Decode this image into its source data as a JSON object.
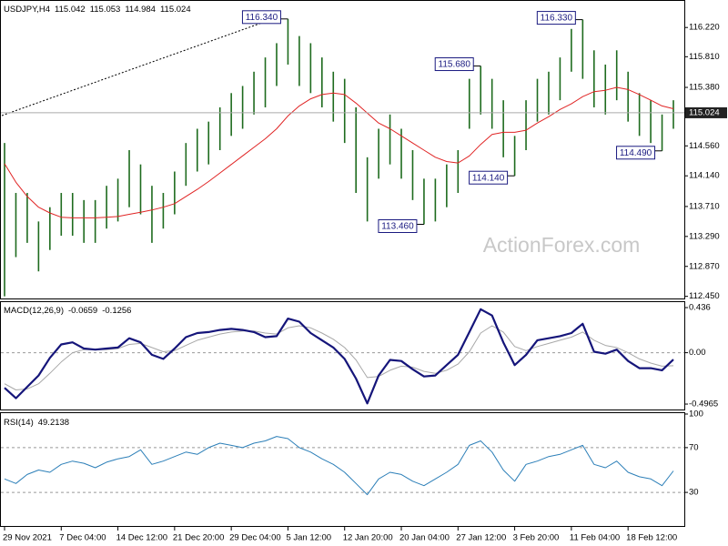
{
  "chart_data": [
    {
      "type": "range",
      "symbol": "USDJPY,H4",
      "ohlc": [
        115.042,
        115.053,
        114.984,
        115.024
      ],
      "watermark": "ActionForex.com",
      "categories": [
        "29 Nov 2021",
        null,
        null,
        null,
        null,
        "7 Dec 04:00",
        null,
        null,
        null,
        null,
        "14 Dec 12:00",
        null,
        null,
        null,
        null,
        "21 Dec 20:00",
        null,
        null,
        null,
        null,
        "29 Dec 04:00",
        null,
        null,
        null,
        null,
        "5 Jan 12:00",
        null,
        null,
        null,
        null,
        "12 Jan 20:00",
        null,
        null,
        null,
        null,
        "20 Jan 04:00",
        null,
        null,
        null,
        null,
        "27 Jan 12:00",
        null,
        null,
        null,
        null,
        "3 Feb 20:00",
        null,
        null,
        null,
        null,
        "11 Feb 04:00",
        null,
        null,
        null,
        null,
        "18 Feb 12:00",
        null,
        null,
        null,
        null
      ],
      "high": [
        114.6,
        113.9,
        113.9,
        113.5,
        113.7,
        113.9,
        113.9,
        113.8,
        113.8,
        114.0,
        114.1,
        114.5,
        114.3,
        114.0,
        113.9,
        114.2,
        114.6,
        114.8,
        114.9,
        115.1,
        115.3,
        115.4,
        115.6,
        115.8,
        116.0,
        116.34,
        116.1,
        116.0,
        115.8,
        115.6,
        115.5,
        115.1,
        114.4,
        114.8,
        115.0,
        114.8,
        114.5,
        114.1,
        114.1,
        114.3,
        114.5,
        115.5,
        115.68,
        115.5,
        115.2,
        114.7,
        115.2,
        115.5,
        115.6,
        115.8,
        116.2,
        116.33,
        115.9,
        115.7,
        115.9,
        115.6,
        115.3,
        115.2,
        115.0,
        115.2
      ],
      "low": [
        112.45,
        113.0,
        113.2,
        112.8,
        113.1,
        113.3,
        113.3,
        113.2,
        113.2,
        113.4,
        113.5,
        113.7,
        113.6,
        113.2,
        113.4,
        113.6,
        114.0,
        114.2,
        114.3,
        114.5,
        114.7,
        114.8,
        115.0,
        115.1,
        115.4,
        115.7,
        115.4,
        115.3,
        115.1,
        114.9,
        114.6,
        113.9,
        113.5,
        114.1,
        114.3,
        114.1,
        113.8,
        113.46,
        113.5,
        113.7,
        113.9,
        114.8,
        115.0,
        114.8,
        114.4,
        114.14,
        114.5,
        114.9,
        115.0,
        115.2,
        115.6,
        115.5,
        115.1,
        115.0,
        115.2,
        114.9,
        114.7,
        114.6,
        114.49,
        114.8
      ],
      "ma": [
        114.31,
        114.05,
        113.85,
        113.7,
        113.62,
        113.56,
        113.55,
        113.55,
        113.55,
        113.56,
        113.57,
        113.6,
        113.63,
        113.66,
        113.7,
        113.75,
        113.85,
        113.95,
        114.06,
        114.18,
        114.3,
        114.42,
        114.54,
        114.66,
        114.8,
        114.98,
        115.12,
        115.22,
        115.28,
        115.3,
        115.28,
        115.16,
        115.02,
        114.88,
        114.8,
        114.7,
        114.6,
        114.5,
        114.4,
        114.34,
        114.32,
        114.42,
        114.58,
        114.72,
        114.75,
        114.75,
        114.78,
        114.88,
        114.97,
        115.07,
        115.15,
        115.25,
        115.32,
        115.34,
        115.38,
        115.35,
        115.28,
        115.2,
        115.12,
        115.08
      ],
      "bar_color": "#1e6b1e",
      "ma_color": "#e02424",
      "annotations": [
        {
          "value": 116.34,
          "label": "116.340"
        },
        {
          "value": 115.68,
          "label": "115.680"
        },
        {
          "value": 113.46,
          "label": "113.460"
        },
        {
          "value": 114.14,
          "label": "114.140"
        },
        {
          "value": 116.33,
          "label": "116.330"
        },
        {
          "value": 114.49,
          "label": "114.490"
        }
      ],
      "ylim": [
        112.42,
        116.58
      ],
      "yticks": [
        {
          "value": 112.45,
          "label": "112.450"
        },
        {
          "value": 112.87,
          "label": "112.870"
        },
        {
          "value": 113.29,
          "label": "113.290"
        },
        {
          "value": 113.71,
          "label": "113.710"
        },
        {
          "value": 114.14,
          "label": "114.140"
        },
        {
          "value": 114.56,
          "label": "114.560"
        },
        {
          "value": 115.38,
          "label": "115.380"
        },
        {
          "value": 115.81,
          "label": "115.810"
        },
        {
          "value": 116.22,
          "label": "116.220"
        }
      ]
    },
    {
      "type": "macd",
      "label": "MACD(12,26,9)",
      "main": [
        -0.34,
        -0.44,
        -0.33,
        -0.22,
        -0.05,
        0.08,
        0.1,
        0.04,
        0.03,
        0.04,
        0.05,
        0.14,
        0.1,
        -0.02,
        -0.06,
        0.04,
        0.15,
        0.19,
        0.2,
        0.22,
        0.23,
        0.22,
        0.2,
        0.15,
        0.16,
        0.33,
        0.3,
        0.19,
        0.12,
        0.05,
        -0.06,
        -0.25,
        -0.49,
        -0.22,
        -0.07,
        -0.08,
        -0.16,
        -0.23,
        -0.22,
        -0.12,
        -0.02,
        0.2,
        0.42,
        0.36,
        0.1,
        -0.12,
        -0.02,
        0.12,
        0.14,
        0.16,
        0.19,
        0.28,
        0.01,
        -0.01,
        0.03,
        -0.08,
        -0.15,
        -0.15,
        -0.17,
        -0.0659
      ],
      "signal": [
        -0.3,
        -0.36,
        -0.35,
        -0.3,
        -0.2,
        -0.09,
        0.0,
        0.03,
        0.03,
        0.03,
        0.04,
        0.08,
        0.09,
        0.05,
        0.01,
        0.02,
        0.07,
        0.12,
        0.15,
        0.18,
        0.2,
        0.21,
        0.21,
        0.19,
        0.18,
        0.24,
        0.26,
        0.24,
        0.19,
        0.13,
        0.05,
        -0.07,
        -0.24,
        -0.23,
        -0.17,
        -0.13,
        -0.14,
        -0.18,
        -0.2,
        -0.17,
        -0.11,
        0.01,
        0.19,
        0.26,
        0.2,
        0.06,
        0.02,
        0.06,
        0.09,
        0.12,
        0.15,
        0.2,
        0.12,
        0.07,
        0.05,
        0.0,
        -0.06,
        -0.1,
        -0.13,
        -0.1256
      ],
      "main_color": "#15157a",
      "signal_color": "#a8a8a8",
      "ylim": [
        -0.549,
        0.489
      ],
      "yticks": [
        0.436,
        {
          "value": 0,
          "label": "0.00"
        },
        -0.4965
      ]
    },
    {
      "type": "rsi",
      "label": "RSI(14)",
      "values": [
        42,
        38,
        46,
        50,
        48,
        55,
        58,
        56,
        52,
        57,
        60,
        62,
        68,
        55,
        58,
        62,
        66,
        64,
        70,
        74,
        72,
        70,
        74,
        76,
        80,
        78,
        70,
        66,
        60,
        55,
        48,
        38,
        28,
        42,
        48,
        46,
        40,
        36,
        42,
        48,
        55,
        72,
        76,
        66,
        50,
        40,
        55,
        58,
        62,
        64,
        68,
        72,
        55,
        52,
        58,
        48,
        44,
        42,
        36,
        49.2138
      ],
      "color": "#2c7fb8",
      "ylim": [
        0,
        100.8
      ],
      "yticks": [
        100,
        70,
        30
      ]
    }
  ]
}
